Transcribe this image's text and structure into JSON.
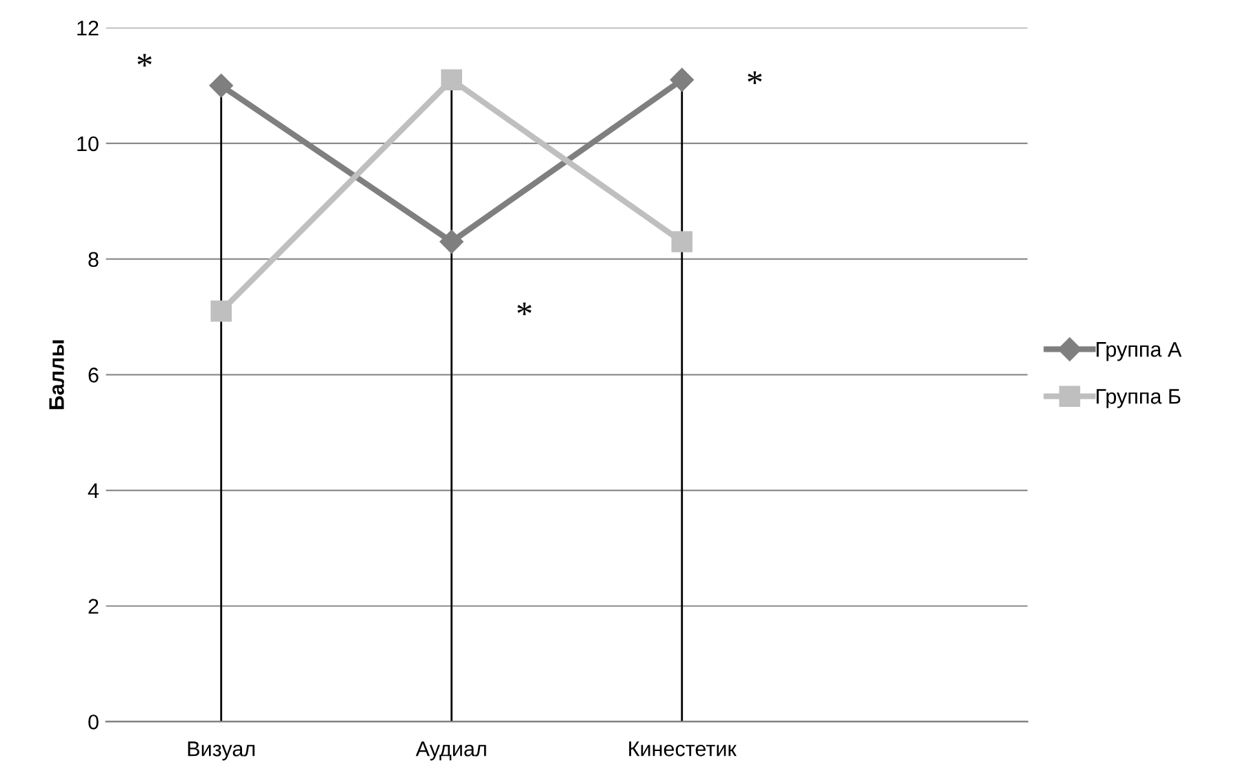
{
  "chart_data": {
    "type": "line",
    "ylabel": "Баллы",
    "categories": [
      "Визуал",
      "Аудиал",
      "Кинестетик",
      null
    ],
    "series": [
      {
        "name": "Группа А",
        "color": "#7f7f7f",
        "values": [
          11,
          8.3,
          11.1,
          null
        ],
        "marker": "diamond"
      },
      {
        "name": "Группа Б",
        "color": "#bfbfbf",
        "values": [
          7.1,
          11.1,
          8.3,
          null
        ],
        "marker": "square"
      }
    ],
    "ylim": [
      0,
      12
    ],
    "yticks": [
      0,
      2,
      4,
      6,
      8,
      10,
      12
    ],
    "grid": "y",
    "legend": "right",
    "ref_lines": [
      {
        "axis": "x",
        "value": "Визуал",
        "color": "#000000"
      },
      {
        "axis": "x",
        "value": "Аудиал",
        "color": "#000000"
      },
      {
        "axis": "x",
        "value": "Кинестетик",
        "color": "#000000"
      }
    ],
    "annotations": [
      {
        "text": "*",
        "x": "Визуал",
        "y": 11.3
      },
      {
        "text": "*",
        "x": "Аудиал",
        "y": 7.0
      },
      {
        "text": "*",
        "x": "Кинестетик",
        "y": 11.0
      }
    ]
  }
}
